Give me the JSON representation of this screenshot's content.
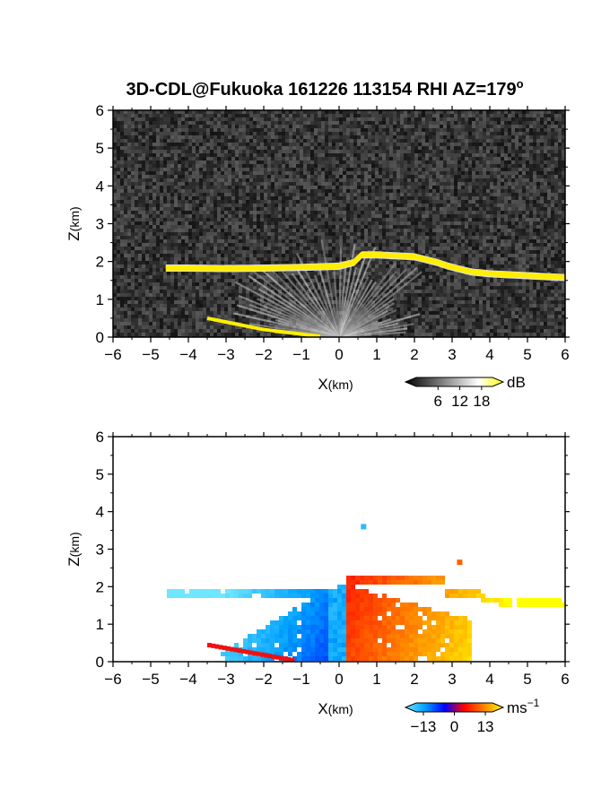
{
  "chart_data": [
    {
      "type": "heatmap",
      "title": "3D-CDL@Fukuoka 161226 113154 RHI AZ=179",
      "title_superscript": "o",
      "xlabel_main": "X",
      "xlabel_unit": "(km)",
      "ylabel_main": "Z",
      "ylabel_unit": "(km)",
      "xlim": [
        -6,
        6
      ],
      "ylim": [
        0,
        6
      ],
      "xticks": [
        "-6",
        "-5",
        "-4",
        "-3",
        "-2",
        "-1",
        "0",
        "1",
        "2",
        "3",
        "4",
        "5",
        "6"
      ],
      "yticks": [
        "0",
        "1",
        "2",
        "3",
        "4",
        "5",
        "6"
      ],
      "grid": false,
      "background_color": "#2b2b2b",
      "colorbar": {
        "unit": "dB",
        "tick_labels": [
          "6",
          "12",
          "18"
        ],
        "tick_values": [
          6,
          12,
          18
        ],
        "range": [
          0,
          21
        ],
        "colors": [
          "#000000",
          "#555555",
          "#aaaaaa",
          "#ffffff",
          "#ffff00"
        ]
      },
      "features": {
        "cloud_base": {
          "color": "#ffee00",
          "x": [
            -4.6,
            -4.0,
            -3.0,
            -2.0,
            -1.0,
            0.0,
            0.4,
            0.6,
            1.0,
            2.0,
            2.6,
            2.9,
            3.5,
            4.0,
            5.0,
            6.0
          ],
          "z": [
            1.85,
            1.85,
            1.84,
            1.85,
            1.87,
            1.9,
            2.0,
            2.2,
            2.2,
            2.15,
            2.0,
            1.9,
            1.75,
            1.7,
            1.65,
            1.6
          ]
        },
        "ground_echo": {
          "color": "#ffee00",
          "x": [
            -3.5,
            -3.0,
            -2.0,
            -1.0,
            -0.5
          ],
          "z": [
            0.5,
            0.4,
            0.2,
            0.08,
            0.02
          ]
        }
      }
    },
    {
      "type": "heatmap",
      "xlabel_main": "X",
      "xlabel_unit": "(km)",
      "ylabel_main": "Z",
      "ylabel_unit": "(km)",
      "xlim": [
        -6,
        6
      ],
      "ylim": [
        0,
        6
      ],
      "xticks": [
        "-6",
        "-5",
        "-4",
        "-3",
        "-2",
        "-1",
        "0",
        "1",
        "2",
        "3",
        "4",
        "5",
        "6"
      ],
      "yticks": [
        "0",
        "1",
        "2",
        "3",
        "4",
        "5",
        "6"
      ],
      "grid": false,
      "background_color": "#ffffff",
      "colorbar": {
        "unit": "ms",
        "unit_superscript": "-1",
        "tick_labels": [
          "-13",
          "0",
          "13"
        ],
        "tick_values": [
          -13,
          0,
          13
        ],
        "range": [
          -16,
          16
        ],
        "colors": [
          "#6fe6ff",
          "#00a0ff",
          "#0000ff",
          "#ff0000",
          "#ff8000",
          "#ffff00"
        ]
      },
      "features": {
        "negative_region_color": "#33b8ff",
        "positive_region_color": "#ff9a00",
        "zero_line_x": 0.2,
        "outliers": [
          {
            "x": 0.65,
            "z": 3.6,
            "value": -12
          },
          {
            "x": 3.2,
            "z": 2.65,
            "value": 8
          }
        ]
      }
    }
  ]
}
